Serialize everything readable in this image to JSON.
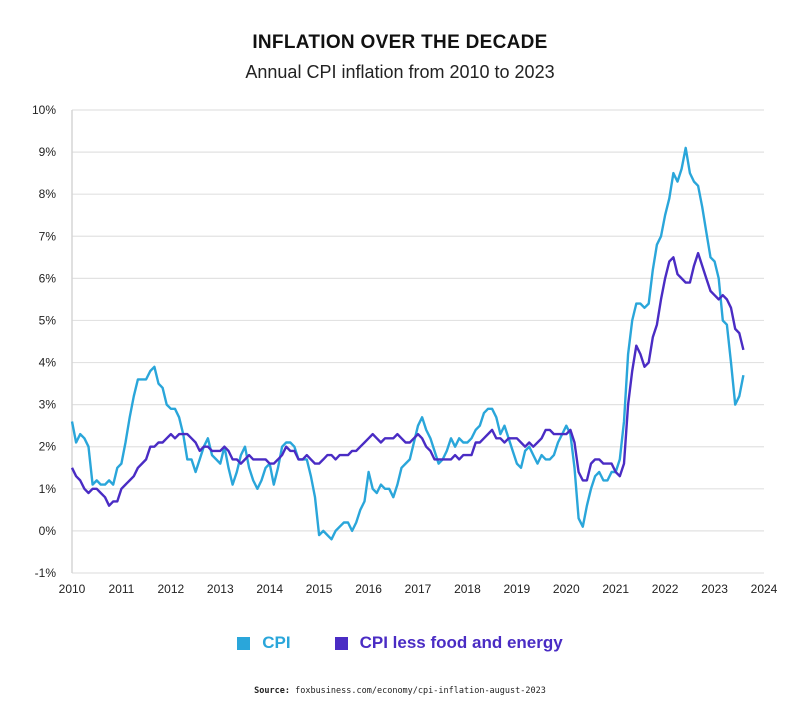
{
  "chart_data": {
    "type": "line",
    "title": "INFLATION OVER THE DECADE",
    "subtitle": "Annual CPI inflation from 2010 to 2023",
    "xlabel": "",
    "ylabel": "",
    "xlim": [
      2010,
      2024
    ],
    "ylim": [
      -1,
      10
    ],
    "x_ticks": [
      "2010",
      "2011",
      "2012",
      "2013",
      "2014",
      "2015",
      "2016",
      "2017",
      "2018",
      "2019",
      "2020",
      "2021",
      "2022",
      "2023",
      "2024"
    ],
    "y_ticks": [
      "-1%",
      "0%",
      "1%",
      "2%",
      "3%",
      "4%",
      "5%",
      "6%",
      "7%",
      "8%",
      "9%",
      "10%"
    ],
    "grid": "horizontal",
    "legend_position": "bottom",
    "x_start": "2010-01",
    "x_step": "monthly",
    "series": [
      {
        "name": "CPI",
        "color": "#2aa6da",
        "values": [
          2.6,
          2.1,
          2.3,
          2.2,
          2.0,
          1.1,
          1.2,
          1.1,
          1.1,
          1.2,
          1.1,
          1.5,
          1.6,
          2.1,
          2.7,
          3.2,
          3.6,
          3.6,
          3.6,
          3.8,
          3.9,
          3.5,
          3.4,
          3.0,
          2.9,
          2.9,
          2.7,
          2.3,
          1.7,
          1.7,
          1.4,
          1.7,
          2.0,
          2.2,
          1.8,
          1.7,
          1.6,
          2.0,
          1.5,
          1.1,
          1.4,
          1.8,
          2.0,
          1.5,
          1.2,
          1.0,
          1.2,
          1.5,
          1.6,
          1.1,
          1.5,
          2.0,
          2.1,
          2.1,
          2.0,
          1.7,
          1.7,
          1.7,
          1.3,
          0.8,
          -0.1,
          0.0,
          -0.1,
          -0.2,
          0.0,
          0.1,
          0.2,
          0.2,
          0.0,
          0.2,
          0.5,
          0.7,
          1.4,
          1.0,
          0.9,
          1.1,
          1.0,
          1.0,
          0.8,
          1.1,
          1.5,
          1.6,
          1.7,
          2.1,
          2.5,
          2.7,
          2.4,
          2.2,
          1.9,
          1.6,
          1.7,
          1.9,
          2.2,
          2.0,
          2.2,
          2.1,
          2.1,
          2.2,
          2.4,
          2.5,
          2.8,
          2.9,
          2.9,
          2.7,
          2.3,
          2.5,
          2.2,
          1.9,
          1.6,
          1.5,
          1.9,
          2.0,
          1.8,
          1.6,
          1.8,
          1.7,
          1.7,
          1.8,
          2.1,
          2.3,
          2.5,
          2.3,
          1.5,
          0.3,
          0.1,
          0.6,
          1.0,
          1.3,
          1.4,
          1.2,
          1.2,
          1.4,
          1.4,
          1.7,
          2.6,
          4.2,
          5.0,
          5.4,
          5.4,
          5.3,
          5.4,
          6.2,
          6.8,
          7.0,
          7.5,
          7.9,
          8.5,
          8.3,
          8.6,
          9.1,
          8.5,
          8.3,
          8.2,
          7.7,
          7.1,
          6.5,
          6.4,
          6.0,
          5.0,
          4.9,
          4.0,
          3.0,
          3.2,
          3.7
        ]
      },
      {
        "name": "CPI less food and energy",
        "color": "#4a2cc4",
        "values": [
          1.5,
          1.3,
          1.2,
          1.0,
          0.9,
          1.0,
          1.0,
          0.9,
          0.8,
          0.6,
          0.7,
          0.7,
          1.0,
          1.1,
          1.2,
          1.3,
          1.5,
          1.6,
          1.7,
          2.0,
          2.0,
          2.1,
          2.1,
          2.2,
          2.3,
          2.2,
          2.3,
          2.3,
          2.3,
          2.2,
          2.1,
          1.9,
          2.0,
          2.0,
          1.9,
          1.9,
          1.9,
          2.0,
          1.9,
          1.7,
          1.7,
          1.6,
          1.7,
          1.8,
          1.7,
          1.7,
          1.7,
          1.7,
          1.6,
          1.6,
          1.7,
          1.8,
          2.0,
          1.9,
          1.9,
          1.7,
          1.7,
          1.8,
          1.7,
          1.6,
          1.6,
          1.7,
          1.8,
          1.8,
          1.7,
          1.8,
          1.8,
          1.8,
          1.9,
          1.9,
          2.0,
          2.1,
          2.2,
          2.3,
          2.2,
          2.1,
          2.2,
          2.2,
          2.2,
          2.3,
          2.2,
          2.1,
          2.1,
          2.2,
          2.3,
          2.2,
          2.0,
          1.9,
          1.7,
          1.7,
          1.7,
          1.7,
          1.7,
          1.8,
          1.7,
          1.8,
          1.8,
          1.8,
          2.1,
          2.1,
          2.2,
          2.3,
          2.4,
          2.2,
          2.2,
          2.1,
          2.2,
          2.2,
          2.2,
          2.1,
          2.0,
          2.1,
          2.0,
          2.1,
          2.2,
          2.4,
          2.4,
          2.3,
          2.3,
          2.3,
          2.3,
          2.4,
          2.1,
          1.4,
          1.2,
          1.2,
          1.6,
          1.7,
          1.7,
          1.6,
          1.6,
          1.6,
          1.4,
          1.3,
          1.6,
          3.0,
          3.8,
          4.4,
          4.2,
          3.9,
          4.0,
          4.6,
          4.9,
          5.5,
          6.0,
          6.4,
          6.5,
          6.1,
          6.0,
          5.9,
          5.9,
          6.3,
          6.6,
          6.3,
          6.0,
          5.7,
          5.6,
          5.5,
          5.6,
          5.5,
          5.3,
          4.8,
          4.7,
          4.3
        ]
      }
    ]
  },
  "source": {
    "label": "Source:",
    "text": "foxbusiness.com/economy/cpi-inflation-august-2023"
  }
}
